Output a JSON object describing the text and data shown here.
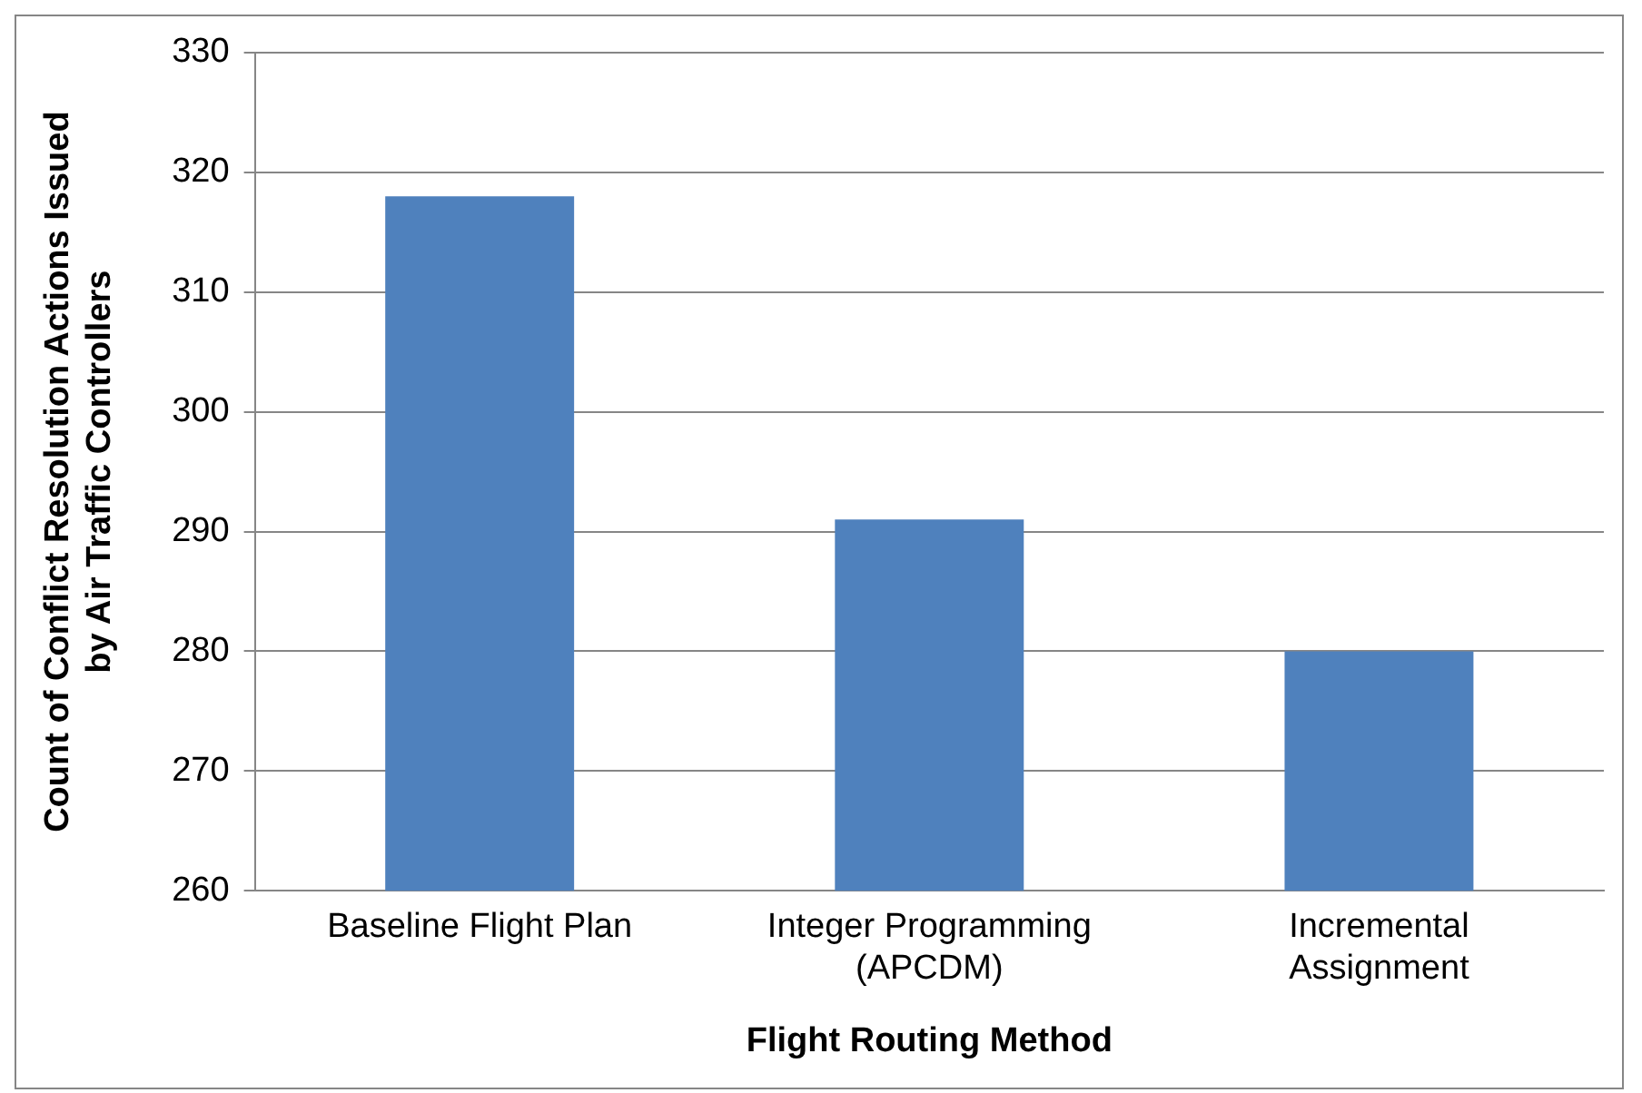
{
  "chart_data": {
    "type": "bar",
    "xlabel": "Flight Routing Method",
    "ylabel": "Count of Conflict Resolution Actions Issued\nby Air Traffic Controllers",
    "categories": [
      "Baseline Flight Plan",
      "Integer Programming (APCDM)",
      "Incremental Assignment"
    ],
    "values": [
      318,
      291,
      280
    ],
    "color": "#4f81bd",
    "ylim": [
      260,
      330
    ],
    "yticks": [
      260,
      270,
      280,
      290,
      300,
      310,
      320,
      330
    ],
    "grid": "y"
  }
}
